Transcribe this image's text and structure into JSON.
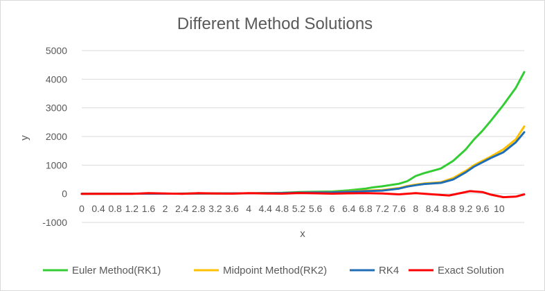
{
  "chart_data": {
    "type": "line",
    "title": "Different Method Solutions",
    "xlabel": "x",
    "ylabel": "y",
    "ylim": [
      -1000,
      5000
    ],
    "yticks": [
      -1000,
      0,
      1000,
      2000,
      3000,
      4000,
      5000
    ],
    "grid": "horizontal",
    "legend_position": "bottom",
    "x_tick_labels": [
      "0",
      "0.4",
      "0.8",
      "1.2",
      "1.6",
      "2",
      "2.4",
      "2.8",
      "3.2",
      "3.6",
      "4",
      "4.4",
      "4.8",
      "5.2",
      "5.6",
      "6",
      "6.4",
      "6.8",
      "7.2",
      "7.6",
      "8",
      "8.4",
      "8.8",
      "9.2",
      "9.6",
      "10"
    ],
    "series": [
      {
        "name": "Euler Method(RK1)",
        "color": "#33cc33",
        "points": [
          [
            0,
            0
          ],
          [
            1,
            5
          ],
          [
            2,
            5
          ],
          [
            3,
            10
          ],
          [
            4,
            15
          ],
          [
            4.8,
            35
          ],
          [
            5.2,
            60
          ],
          [
            5.6,
            70
          ],
          [
            6,
            80
          ],
          [
            6.4,
            120
          ],
          [
            6.8,
            180
          ],
          [
            7,
            230
          ],
          [
            7.2,
            260
          ],
          [
            7.6,
            350
          ],
          [
            7.8,
            440
          ],
          [
            8,
            620
          ],
          [
            8.2,
            720
          ],
          [
            8.6,
            880
          ],
          [
            8.9,
            1150
          ],
          [
            9.2,
            1550
          ],
          [
            9.4,
            1900
          ],
          [
            9.6,
            2200
          ],
          [
            9.8,
            2550
          ],
          [
            10.1,
            3100
          ],
          [
            10.4,
            3700
          ],
          [
            10.6,
            4250
          ]
        ]
      },
      {
        "name": "Midpoint Method(RK2)",
        "color": "#ffc000",
        "points": [
          [
            0,
            0
          ],
          [
            1,
            5
          ],
          [
            2,
            5
          ],
          [
            3,
            10
          ],
          [
            4,
            15
          ],
          [
            4.8,
            25
          ],
          [
            5.2,
            40
          ],
          [
            5.6,
            50
          ],
          [
            6,
            55
          ],
          [
            6.4,
            80
          ],
          [
            6.8,
            110
          ],
          [
            7.2,
            130
          ],
          [
            7.6,
            200
          ],
          [
            7.8,
            270
          ],
          [
            8,
            320
          ],
          [
            8.2,
            360
          ],
          [
            8.6,
            400
          ],
          [
            8.9,
            550
          ],
          [
            9.2,
            800
          ],
          [
            9.4,
            1000
          ],
          [
            9.6,
            1150
          ],
          [
            9.8,
            1300
          ],
          [
            10.1,
            1550
          ],
          [
            10.4,
            1900
          ],
          [
            10.6,
            2350
          ]
        ]
      },
      {
        "name": "RK4",
        "color": "#1f6db5",
        "points": [
          [
            0,
            0
          ],
          [
            1,
            5
          ],
          [
            2,
            5
          ],
          [
            3,
            10
          ],
          [
            4,
            15
          ],
          [
            4.8,
            25
          ],
          [
            5.2,
            40
          ],
          [
            5.6,
            45
          ],
          [
            6,
            50
          ],
          [
            6.4,
            70
          ],
          [
            6.8,
            90
          ],
          [
            7.2,
            110
          ],
          [
            7.6,
            180
          ],
          [
            7.8,
            250
          ],
          [
            8,
            300
          ],
          [
            8.2,
            340
          ],
          [
            8.6,
            380
          ],
          [
            8.9,
            500
          ],
          [
            9.2,
            750
          ],
          [
            9.4,
            950
          ],
          [
            9.6,
            1100
          ],
          [
            9.8,
            1250
          ],
          [
            10.1,
            1450
          ],
          [
            10.4,
            1800
          ],
          [
            10.6,
            2150
          ]
        ]
      },
      {
        "name": "Exact Solution",
        "color": "#ff0000",
        "points": [
          [
            0,
            0
          ],
          [
            0.6,
            0
          ],
          [
            1.2,
            0
          ],
          [
            1.6,
            20
          ],
          [
            2,
            10
          ],
          [
            2.4,
            0
          ],
          [
            2.8,
            20
          ],
          [
            3.2,
            10
          ],
          [
            3.6,
            5
          ],
          [
            4,
            20
          ],
          [
            4.4,
            10
          ],
          [
            4.8,
            5
          ],
          [
            5.2,
            25
          ],
          [
            5.6,
            15
          ],
          [
            6,
            5
          ],
          [
            6.4,
            15
          ],
          [
            6.8,
            20
          ],
          [
            7.2,
            10
          ],
          [
            7.6,
            -20
          ],
          [
            8,
            20
          ],
          [
            8.4,
            -20
          ],
          [
            8.8,
            -60
          ],
          [
            9.1,
            30
          ],
          [
            9.3,
            90
          ],
          [
            9.6,
            60
          ],
          [
            9.8,
            -30
          ],
          [
            10.1,
            -120
          ],
          [
            10.4,
            -100
          ],
          [
            10.6,
            -20
          ]
        ]
      }
    ]
  }
}
